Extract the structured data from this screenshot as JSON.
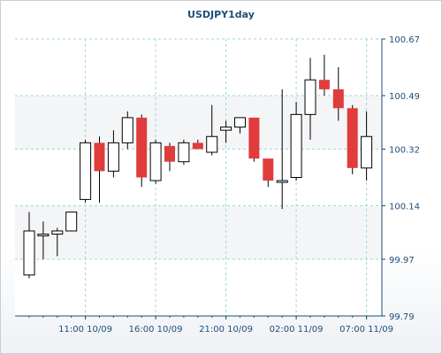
{
  "chart_data": {
    "type": "candlestick",
    "title": "USDJPY1day",
    "xlabel": "",
    "ylabel": "",
    "ylim": [
      99.79,
      100.67
    ],
    "y_ticks": [
      "100.67",
      "100.49",
      "100.32",
      "100.14",
      "99.97",
      "99.79"
    ],
    "x_tick_labels": [
      "11:00 10/09",
      "16:00 10/09",
      "21:00 10/09",
      "02:00 11/09",
      "07:00 11/09"
    ],
    "x_tick_candle_index": [
      4,
      9,
      14,
      19,
      24
    ],
    "grid": true,
    "colors": {
      "up": "#ffffff",
      "down": "#e03c3c",
      "outline": "#000000",
      "grid": "#9dd8d8",
      "axis": "#1f4e79",
      "plot_band": "#f4f5f7"
    },
    "candles": [
      {
        "o": 99.92,
        "h": 100.12,
        "l": 99.91,
        "c": 100.06
      },
      {
        "o": 100.05,
        "h": 100.09,
        "l": 99.97,
        "c": 100.05
      },
      {
        "o": 100.05,
        "h": 100.07,
        "l": 99.98,
        "c": 100.06
      },
      {
        "o": 100.06,
        "h": 100.12,
        "l": 100.06,
        "c": 100.12
      },
      {
        "o": 100.16,
        "h": 100.35,
        "l": 100.15,
        "c": 100.34
      },
      {
        "o": 100.34,
        "h": 100.36,
        "l": 100.15,
        "c": 100.25
      },
      {
        "o": 100.25,
        "h": 100.38,
        "l": 100.23,
        "c": 100.34
      },
      {
        "o": 100.34,
        "h": 100.44,
        "l": 100.32,
        "c": 100.42
      },
      {
        "o": 100.42,
        "h": 100.43,
        "l": 100.2,
        "c": 100.23
      },
      {
        "o": 100.22,
        "h": 100.35,
        "l": 100.21,
        "c": 100.34
      },
      {
        "o": 100.33,
        "h": 100.34,
        "l": 100.25,
        "c": 100.28
      },
      {
        "o": 100.28,
        "h": 100.35,
        "l": 100.27,
        "c": 100.34
      },
      {
        "o": 100.34,
        "h": 100.35,
        "l": 100.32,
        "c": 100.32
      },
      {
        "o": 100.31,
        "h": 100.46,
        "l": 100.3,
        "c": 100.36
      },
      {
        "o": 100.38,
        "h": 100.41,
        "l": 100.34,
        "c": 100.39
      },
      {
        "o": 100.39,
        "h": 100.42,
        "l": 100.37,
        "c": 100.42
      },
      {
        "o": 100.42,
        "h": 100.42,
        "l": 100.28,
        "c": 100.29
      },
      {
        "o": 100.29,
        "h": 100.29,
        "l": 100.2,
        "c": 100.22
      },
      {
        "o": 100.22,
        "h": 100.51,
        "l": 100.13,
        "c": 100.22
      },
      {
        "o": 100.23,
        "h": 100.47,
        "l": 100.22,
        "c": 100.43
      },
      {
        "o": 100.43,
        "h": 100.61,
        "l": 100.35,
        "c": 100.54
      },
      {
        "o": 100.54,
        "h": 100.62,
        "l": 100.49,
        "c": 100.51
      },
      {
        "o": 100.51,
        "h": 100.58,
        "l": 100.41,
        "c": 100.45
      },
      {
        "o": 100.45,
        "h": 100.46,
        "l": 100.24,
        "c": 100.26
      },
      {
        "o": 100.26,
        "h": 100.44,
        "l": 100.22,
        "c": 100.36
      }
    ]
  }
}
